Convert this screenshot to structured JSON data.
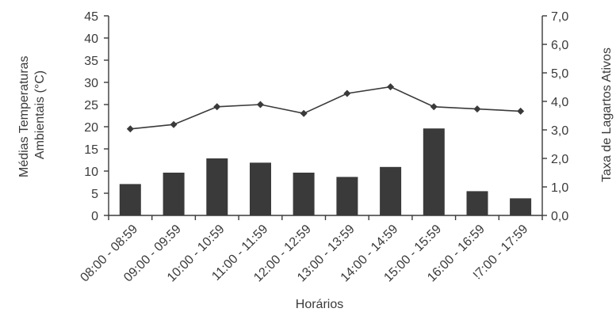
{
  "chart_data": {
    "type": "bar",
    "categories": [
      "08:00 - 08:59",
      "09:00 - 09:59",
      "10:00 - 10:59",
      "11:00 - 11:59",
      "12:00 - 12:59",
      "13:00 - 13:59",
      "14:00 - 14:59",
      "15:00 - 15:59",
      "16:00 - 16:59",
      "17:00 - 17:59"
    ],
    "tick_labels_x": [
      "08:00 - 08:59",
      "09:00 - 09:59",
      "10:00 - 10:59",
      "11:00 - 11:59",
      "12:00 - 12:59",
      "13:00 - 13:59",
      "14:00 - 14:59",
      "15:00 - 15:59",
      "16:00 - 16:59",
      "!7:00 - 17:59"
    ],
    "series": [
      {
        "kind": "bar",
        "axis": "right",
        "values": [
          1.1,
          1.5,
          2.0,
          1.85,
          1.5,
          1.35,
          1.7,
          3.05,
          0.85,
          0.6
        ],
        "color": "#3a3a3a"
      },
      {
        "kind": "line",
        "axis": "left",
        "values": [
          19.5,
          20.5,
          24.5,
          25.0,
          23.0,
          27.5,
          29.0,
          24.5,
          24.0,
          23.5
        ],
        "color": "#3a3a3a"
      }
    ],
    "xlabel": "Horários",
    "ylabel": "Médias Temperaturas Ambientais (°C)",
    "ylabel_lines": [
      "Médias Temperaturas",
      "Ambientais (°C)"
    ],
    "ylabel_right": "Taxa de Lagartos Ativos",
    "ylim": [
      0,
      45
    ],
    "ylim_right": [
      0,
      7
    ],
    "yticks": [
      "0",
      "5",
      "10",
      "15",
      "20",
      "25",
      "30",
      "35",
      "40",
      "45"
    ],
    "yticks_right": [
      "0,0",
      "1,0",
      "2,0",
      "3,0",
      "4,0",
      "5,0",
      "6,0",
      "7,0"
    ],
    "grid": false,
    "legend": "none"
  }
}
